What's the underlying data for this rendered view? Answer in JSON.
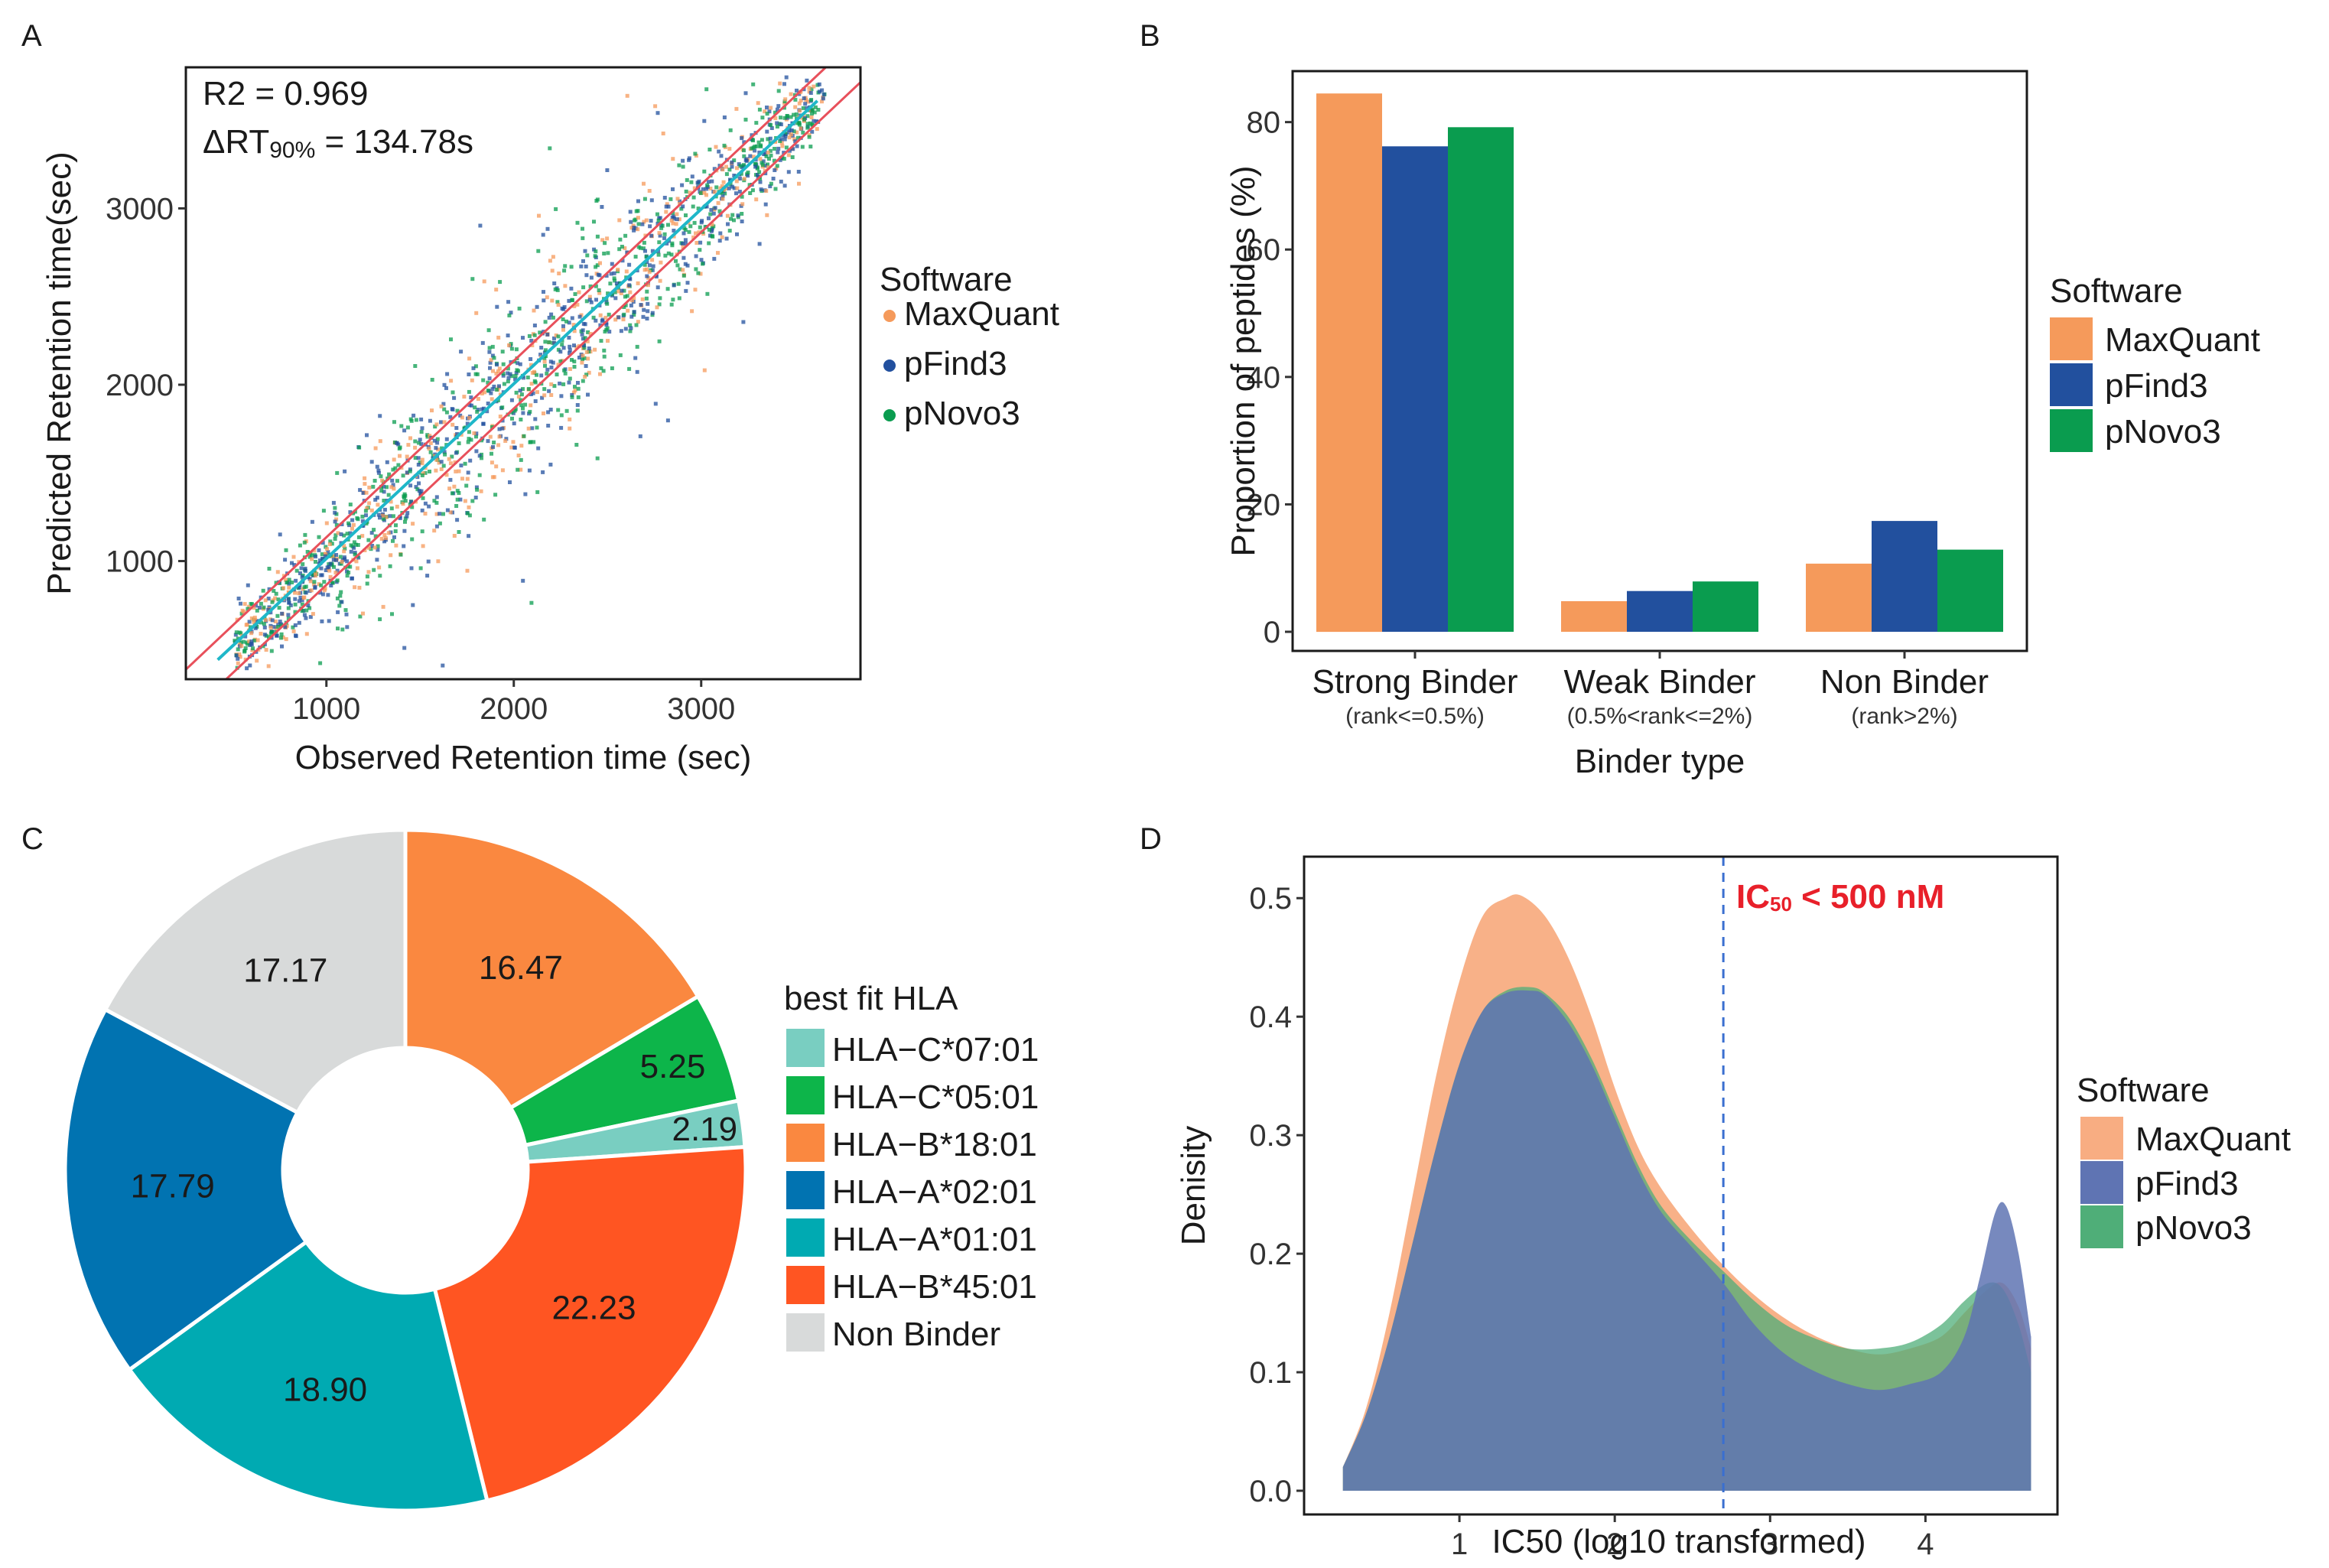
{
  "panels": {
    "a": "A",
    "b": "B",
    "c": "C",
    "d": "D"
  },
  "colors": {
    "maxquant": "#F59A5B",
    "pfind3": "#22509E",
    "pnovo3": "#0A9C4F",
    "fitline": "#E8505B"
  },
  "chart_data": [
    {
      "id": "A",
      "type": "scatter",
      "xlabel": "Observed Retention time (sec)",
      "ylabel": "Predicted Retention time(sec)",
      "xlim": [
        250,
        3850
      ],
      "ylim": [
        330,
        3800
      ],
      "xticks": [
        1000,
        2000,
        3000
      ],
      "yticks": [
        1000,
        2000,
        3000
      ],
      "annotations": {
        "r2": "R2 = 0.969",
        "drt_prefix": "ΔRT",
        "drt_sub": "90%",
        "drt_suffix": " = 134.78s"
      },
      "legend_title": "Software",
      "series": [
        {
          "name": "MaxQuant",
          "color": "#F59A5B"
        },
        {
          "name": "pFind3",
          "color": "#22509E"
        },
        {
          "name": "pNovo3",
          "color": "#0A9C4F"
        }
      ],
      "fit_lines": {
        "slope": 1.0,
        "upper_offset": 135,
        "lower_offset": -135
      }
    },
    {
      "id": "B",
      "type": "bar",
      "categories": [
        "Strong Binder",
        "Weak Binder",
        "Non Binder"
      ],
      "category_subs": [
        "(rank<=0.5%)",
        "(0.5%<rank<=2%)",
        "(rank>2%)"
      ],
      "series": [
        {
          "name": "MaxQuant",
          "color": "#F59A5B",
          "values": [
            84.5,
            4.8,
            10.7
          ]
        },
        {
          "name": "pFind3",
          "color": "#22509E",
          "values": [
            76.2,
            6.4,
            17.4
          ]
        },
        {
          "name": "pNovo3",
          "color": "#0A9C4F",
          "values": [
            79.2,
            7.9,
            12.9
          ]
        }
      ],
      "xlabel": "Binder type",
      "ylabel": "Proportion of peptides (%)",
      "ylim": [
        -3,
        88
      ],
      "yticks": [
        0,
        20,
        40,
        60,
        80
      ],
      "legend_title": "Software"
    },
    {
      "id": "C",
      "type": "pie",
      "legend_title": "best fit HLA",
      "slices": [
        {
          "label": "HLA-B*18:01",
          "value": 16.47,
          "text": "16.47",
          "color": "#FA8840"
        },
        {
          "label": "HLA-C*05:01",
          "value": 5.25,
          "text": "5.25",
          "color": "#0DB54A"
        },
        {
          "label": "HLA-C*07:01",
          "value": 2.19,
          "text": "2.19",
          "color": "#79CEC1"
        },
        {
          "label": "HLA-B*45:01",
          "value": 22.23,
          "text": "22.23",
          "color": "#FF5522"
        },
        {
          "label": "HLA-A*01:01",
          "value": 18.9,
          "text": "18.90",
          "color": "#00AAB2"
        },
        {
          "label": "HLA-A*02:01",
          "value": 17.79,
          "text": "17.79",
          "color": "#0173B1"
        },
        {
          "label": "Non Binder",
          "value": 17.17,
          "text": "17.17",
          "color": "#D8DADA"
        }
      ],
      "legend_order": [
        {
          "label": "HLA−C*07:01",
          "color": "#79CEC1"
        },
        {
          "label": "HLA−C*05:01",
          "color": "#0DB54A"
        },
        {
          "label": "HLA−B*18:01",
          "color": "#FA8840"
        },
        {
          "label": "HLA−A*02:01",
          "color": "#0173B1"
        },
        {
          "label": "HLA−A*01:01",
          "color": "#00AAB2"
        },
        {
          "label": "HLA−B*45:01",
          "color": "#FF5522"
        },
        {
          "label": "Non Binder",
          "color": "#D8DADA"
        }
      ]
    },
    {
      "id": "D",
      "type": "area",
      "xlabel": "IC50 (log10 transformed)",
      "ylabel": "Denisity",
      "xlim": [
        0.0,
        4.85
      ],
      "ylim": [
        -0.02,
        0.535
      ],
      "xticks": [
        1,
        2,
        3,
        4
      ],
      "yticks": [
        0.0,
        0.1,
        0.2,
        0.3,
        0.4,
        0.5
      ],
      "ytick_labels": [
        "0.0",
        "0.1",
        "0.2",
        "0.3",
        "0.4",
        "0.5"
      ],
      "threshold": {
        "x": 2.699,
        "label_main": "IC",
        "label_sub": "50",
        "label_rest": " < 500 nM",
        "color": "#E8202A"
      },
      "legend_title": "Software",
      "series": [
        {
          "name": "MaxQuant",
          "color": "#F8AD82",
          "x": [
            0.25,
            0.4,
            0.55,
            0.7,
            0.85,
            1.0,
            1.15,
            1.3,
            1.4,
            1.55,
            1.7,
            1.85,
            2.0,
            2.15,
            2.3,
            2.5,
            2.7,
            2.9,
            3.1,
            3.3,
            3.5,
            3.7,
            3.9,
            4.1,
            4.25,
            4.4,
            4.5,
            4.6,
            4.68
          ],
          "y": [
            0.02,
            0.07,
            0.15,
            0.25,
            0.35,
            0.43,
            0.485,
            0.5,
            0.502,
            0.485,
            0.45,
            0.4,
            0.34,
            0.29,
            0.255,
            0.22,
            0.19,
            0.165,
            0.145,
            0.13,
            0.12,
            0.115,
            0.12,
            0.13,
            0.15,
            0.17,
            0.175,
            0.155,
            0.12
          ]
        },
        {
          "name": "pFind3",
          "color": "#5F74B3",
          "x": [
            0.25,
            0.4,
            0.55,
            0.7,
            0.85,
            1.0,
            1.15,
            1.3,
            1.45,
            1.55,
            1.7,
            1.85,
            2.0,
            2.15,
            2.3,
            2.5,
            2.7,
            2.9,
            3.1,
            3.3,
            3.5,
            3.7,
            3.9,
            4.1,
            4.25,
            4.35,
            4.45,
            4.52,
            4.6,
            4.68
          ],
          "y": [
            0.02,
            0.065,
            0.13,
            0.21,
            0.29,
            0.36,
            0.405,
            0.42,
            0.422,
            0.418,
            0.395,
            0.36,
            0.315,
            0.27,
            0.235,
            0.205,
            0.175,
            0.14,
            0.115,
            0.1,
            0.09,
            0.085,
            0.09,
            0.1,
            0.13,
            0.18,
            0.235,
            0.24,
            0.2,
            0.13
          ]
        },
        {
          "name": "pNovo3",
          "color": "#4FAE78",
          "x": [
            0.25,
            0.4,
            0.55,
            0.7,
            0.85,
            1.0,
            1.15,
            1.3,
            1.45,
            1.55,
            1.7,
            1.85,
            2.0,
            2.15,
            2.3,
            2.5,
            2.7,
            2.9,
            3.1,
            3.3,
            3.5,
            3.7,
            3.9,
            4.1,
            4.25,
            4.4,
            4.5,
            4.6,
            4.68
          ],
          "y": [
            0.02,
            0.065,
            0.13,
            0.21,
            0.29,
            0.36,
            0.405,
            0.422,
            0.425,
            0.42,
            0.4,
            0.365,
            0.32,
            0.275,
            0.24,
            0.21,
            0.185,
            0.16,
            0.14,
            0.128,
            0.12,
            0.12,
            0.125,
            0.14,
            0.16,
            0.175,
            0.17,
            0.14,
            0.1
          ]
        }
      ]
    }
  ]
}
